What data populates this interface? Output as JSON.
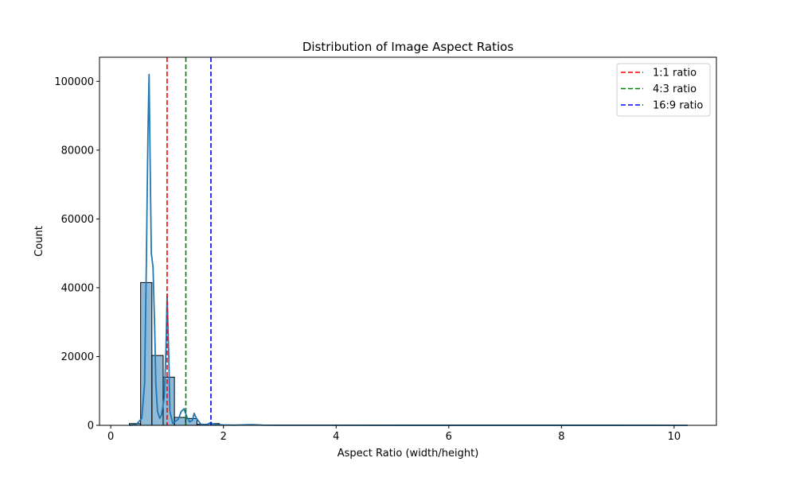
{
  "chart_data": {
    "type": "histogram",
    "title": "Distribution of Image Aspect Ratios",
    "xlabel": "Aspect Ratio (width/height)",
    "ylabel": "Count",
    "xlim": [
      -0.2,
      10.75
    ],
    "ylim": [
      0,
      107000
    ],
    "x_ticks": [
      0,
      2,
      4,
      6,
      8,
      10
    ],
    "y_ticks": [
      0,
      20000,
      40000,
      60000,
      80000,
      100000
    ],
    "grid": false,
    "legend_position": "top-right",
    "bar_color": "#1f77b4",
    "bars": [
      {
        "x0": 0.33,
        "x1": 0.53,
        "count": 500
      },
      {
        "x0": 0.53,
        "x1": 0.73,
        "count": 41500
      },
      {
        "x0": 0.73,
        "x1": 0.93,
        "count": 20300
      },
      {
        "x0": 0.93,
        "x1": 1.13,
        "count": 14000
      },
      {
        "x0": 1.13,
        "x1": 1.33,
        "count": 2300
      },
      {
        "x0": 1.33,
        "x1": 1.53,
        "count": 2000
      },
      {
        "x0": 1.53,
        "x1": 1.73,
        "count": 300
      },
      {
        "x0": 1.73,
        "x1": 1.93,
        "count": 500
      }
    ],
    "kde": {
      "name": "KDE",
      "color": "#1f77b4",
      "x": [
        0.33,
        0.45,
        0.55,
        0.6,
        0.63,
        0.66,
        0.68,
        0.7,
        0.72,
        0.75,
        0.78,
        0.8,
        0.83,
        0.87,
        0.9,
        0.95,
        0.98,
        1.0,
        1.03,
        1.05,
        1.1,
        1.2,
        1.25,
        1.3,
        1.35,
        1.4,
        1.45,
        1.48,
        1.52,
        1.6,
        1.7,
        1.75,
        1.78,
        1.8,
        1.9,
        2.0,
        2.2,
        2.5,
        2.7,
        3.0,
        4.0,
        6.0,
        8.0,
        10.24
      ],
      "y": [
        0,
        200,
        2000,
        12000,
        45000,
        85000,
        102000,
        75000,
        50000,
        46000,
        28000,
        12000,
        4000,
        2000,
        3000,
        8000,
        22000,
        38000,
        20000,
        4000,
        600,
        1800,
        4000,
        4800,
        2500,
        1000,
        1500,
        3500,
        2000,
        300,
        200,
        600,
        900,
        400,
        200,
        100,
        60,
        200,
        60,
        30,
        20,
        15,
        15,
        0
      ]
    },
    "reference_lines": [
      {
        "name": "1:1 ratio",
        "x": 1.0,
        "color": "#ff0000"
      },
      {
        "name": "4:3 ratio",
        "x": 1.333,
        "color": "#008000"
      },
      {
        "name": "16:9 ratio",
        "x": 1.778,
        "color": "#0000ff"
      }
    ]
  }
}
